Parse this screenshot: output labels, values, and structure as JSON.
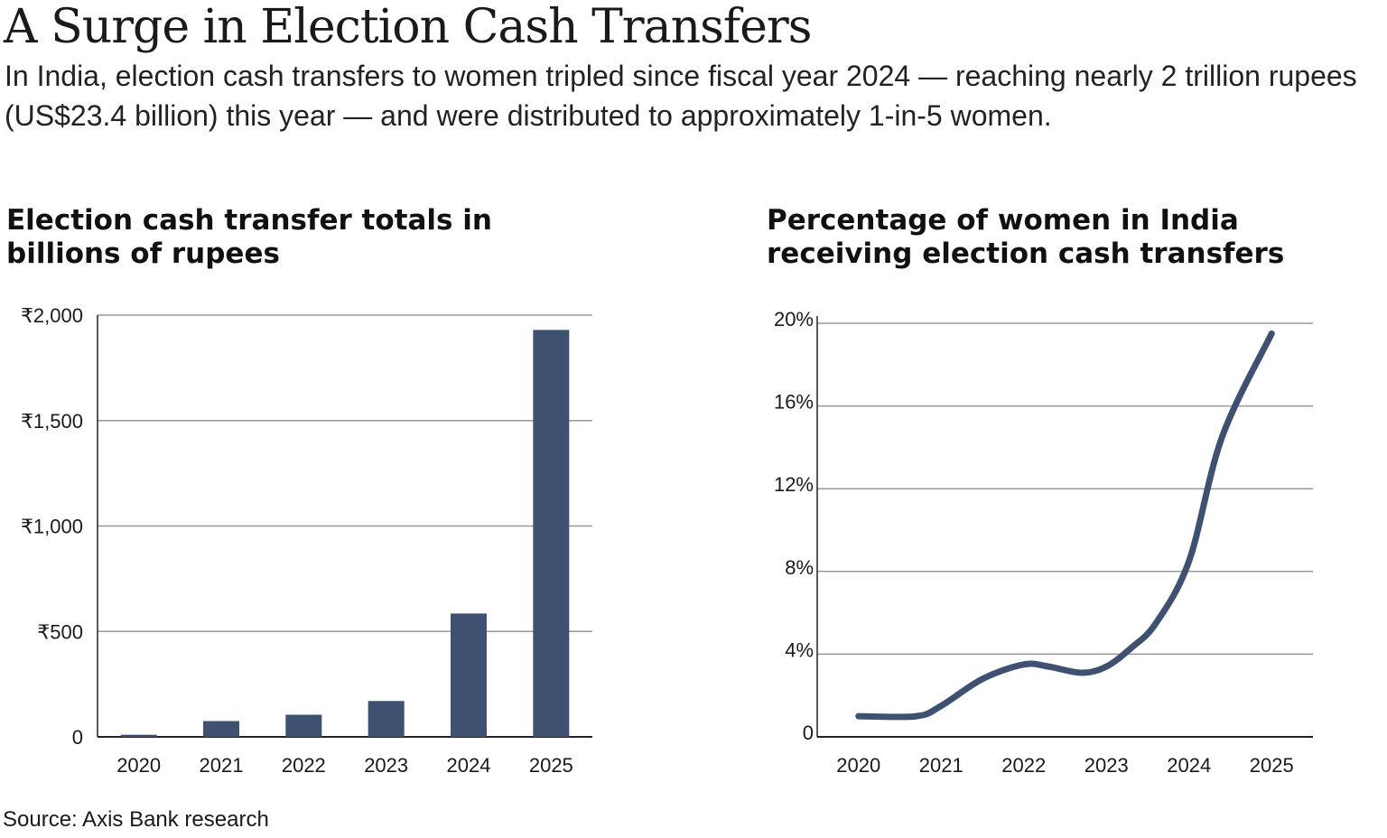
{
  "header": {
    "title": "A Surge in Election Cash Transfers",
    "subtitle": "In India, election cash transfers to women tripled since fiscal year 2024 — reaching nearly 2 trillion rupees (US$23.4 billion) this year — and were distributed to approximately 1-in-5 women."
  },
  "colors": {
    "series": "#3f5170",
    "grid": "#999999",
    "axis": "#222222"
  },
  "chart_data": [
    {
      "type": "bar",
      "title": "Election cash transfer totals in billions of rupees",
      "categories": [
        "2020",
        "2021",
        "2022",
        "2023",
        "2024",
        "2025"
      ],
      "values": [
        10,
        75,
        105,
        170,
        585,
        1930
      ],
      "ylim": [
        0,
        2000
      ],
      "yticks": [
        0,
        500,
        1000,
        1500,
        2000
      ],
      "ytick_labels": [
        "0",
        "₹500",
        "₹1,000",
        "₹1,500",
        "₹2,000"
      ],
      "grid": true
    },
    {
      "type": "line",
      "title": "Percentage of women in India receiving election cash transfers",
      "categories": [
        "2020",
        "2021",
        "2022",
        "2023",
        "2024",
        "2025"
      ],
      "x": [
        2020,
        2020.7,
        2021,
        2021.5,
        2022,
        2022.3,
        2022.7,
        2023,
        2023.3,
        2023.6,
        2024,
        2024.4,
        2025
      ],
      "values": [
        1.0,
        1.0,
        1.5,
        2.8,
        3.5,
        3.4,
        3.1,
        3.4,
        4.3,
        5.5,
        8.5,
        14.5,
        19.5
      ],
      "ylim": [
        0,
        20
      ],
      "yticks": [
        0,
        4,
        8,
        12,
        16,
        20
      ],
      "ytick_labels": [
        "0",
        "4%",
        "8%",
        "12%",
        "16%",
        "20%"
      ],
      "grid": true
    }
  ],
  "footer": {
    "source": "Source: Axis Bank research"
  }
}
